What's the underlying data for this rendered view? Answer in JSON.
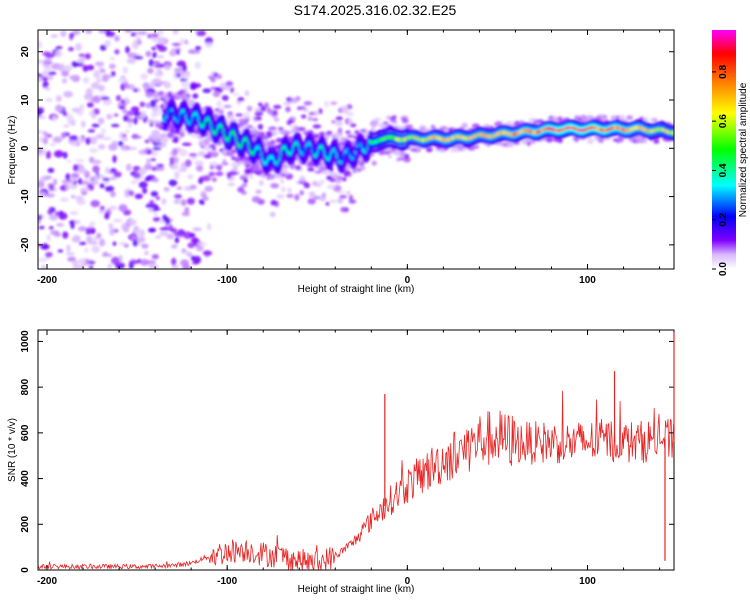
{
  "title": "S174.2025.316.02.32.E25",
  "chart_data": [
    {
      "type": "heatmap",
      "name": "spectrogram",
      "xlabel": "Height of straight line (km)",
      "ylabel": "Frequency (Hz)",
      "xlim": [
        -205,
        148
      ],
      "ylim": [
        -25,
        24.5
      ],
      "xticks": [
        -200,
        -100,
        0,
        100
      ],
      "yticks": [
        -20,
        -10,
        0,
        10,
        20
      ],
      "colorbar": {
        "label": "Normalized spectral amplitude",
        "range": [
          0.0,
          0.97
        ],
        "ticks": [
          "0.0",
          "0.2",
          "0.4",
          "0.6",
          "0.8"
        ],
        "tick_values": [
          0.0,
          0.2,
          0.4,
          0.6,
          0.8
        ],
        "colors": [
          "#ffffff",
          "#d9b8ff",
          "#8000ff",
          "#0000ff",
          "#00ffff",
          "#00ff00",
          "#ffff00",
          "#ff8000",
          "#ff0000",
          "#ff00ff"
        ]
      },
      "ridge": {
        "x": [
          -130,
          -115,
          -105,
          -95,
          -85,
          -75,
          -65,
          -55,
          -45,
          -35,
          -25,
          -15,
          0,
          10,
          25,
          40,
          55,
          70,
          85,
          100,
          115,
          130,
          145
        ],
        "freq": [
          7,
          6,
          4,
          2,
          0,
          -3,
          0,
          0,
          -1,
          -2,
          0,
          2,
          2,
          2,
          2,
          2.5,
          3,
          3.5,
          4,
          4,
          4,
          4,
          3.5
        ],
        "amplitude": [
          0.3,
          0.4,
          0.45,
          0.5,
          0.4,
          0.35,
          0.4,
          0.3,
          0.4,
          0.3,
          0.3,
          0.45,
          0.6,
          0.65,
          0.7,
          0.65,
          0.7,
          0.75,
          0.85,
          0.85,
          0.8,
          0.7,
          0.6
        ]
      }
    },
    {
      "type": "line",
      "name": "snr",
      "xlabel": "Height of straight line (km)",
      "ylabel": "SNR (10 * v/v)",
      "xlim": [
        -205,
        148
      ],
      "ylim": [
        0,
        1050
      ],
      "xticks": [
        -200,
        -100,
        0,
        100
      ],
      "yticks": [
        0,
        200,
        400,
        600,
        800,
        1000
      ],
      "color": "#e82323",
      "x": [
        -205,
        -190,
        -175,
        -160,
        -145,
        -130,
        -120,
        -110,
        -100,
        -90,
        -80,
        -70,
        -60,
        -50,
        -40,
        -30,
        -20,
        -10,
        0,
        10,
        20,
        30,
        40,
        50,
        60,
        70,
        80,
        90,
        100,
        110,
        120,
        130,
        140,
        148
      ],
      "y": [
        15,
        15,
        15,
        15,
        15,
        20,
        30,
        60,
        80,
        90,
        70,
        60,
        40,
        30,
        60,
        120,
        220,
        300,
        370,
        430,
        480,
        520,
        570,
        580,
        560,
        555,
        560,
        555,
        560,
        570,
        560,
        560,
        580,
        560
      ],
      "annotations": [
        {
          "x": -12.5,
          "y": 770,
          "note": "spike"
        },
        {
          "x": 115,
          "y": 870,
          "note": "spike"
        },
        {
          "x": 148,
          "y": 1040,
          "note": "spike"
        },
        {
          "x": 143,
          "y": 40,
          "note": "dip"
        }
      ]
    }
  ]
}
